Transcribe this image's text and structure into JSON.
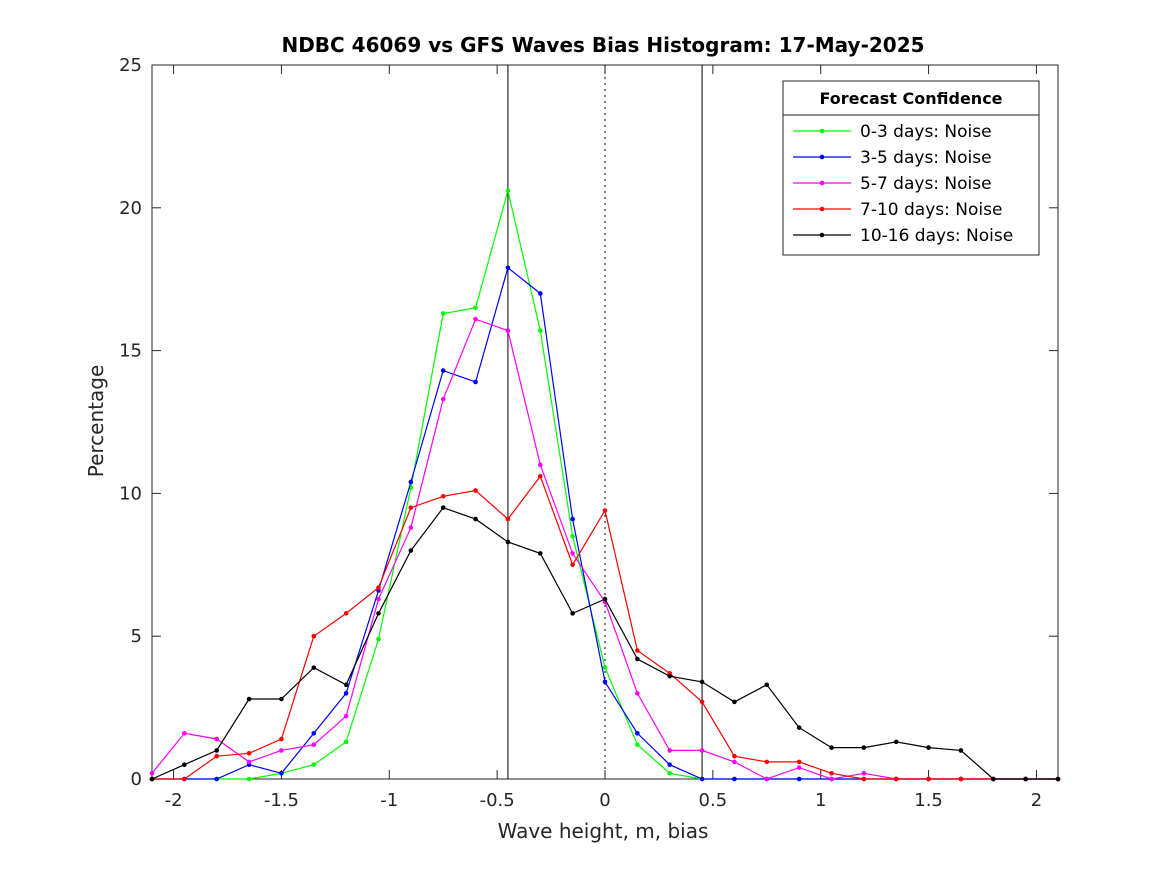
{
  "chart_data": {
    "type": "line",
    "title": "NDBC 46069 vs GFS Waves Bias Histogram: 17-May-2025",
    "xlabel": "Wave height, m, bias",
    "ylabel": "Percentage",
    "xlim": [
      -2.1,
      2.1
    ],
    "ylim": [
      0,
      25
    ],
    "xticks": [
      -2,
      -1.5,
      -1,
      -0.5,
      0,
      0.5,
      1,
      1.5,
      2
    ],
    "xtick_labels": [
      "-2",
      "-1.5",
      "-1",
      "-0.5",
      "0",
      "0.5",
      "1",
      "1.5",
      "2"
    ],
    "yticks": [
      0,
      5,
      10,
      15,
      20,
      25
    ],
    "ytick_labels": [
      "0",
      "5",
      "10",
      "15",
      "20",
      "25"
    ],
    "grid": false,
    "legend_title": "Forecast Confidence",
    "legend_position": "top-right",
    "reference_lines": [
      {
        "x": -0.45,
        "style": "solid"
      },
      {
        "x": 0,
        "style": "dotted"
      },
      {
        "x": 0.45,
        "style": "solid"
      }
    ],
    "x": [
      -2.1,
      -1.95,
      -1.8,
      -1.65,
      -1.5,
      -1.35,
      -1.2,
      -1.05,
      -0.9,
      -0.75,
      -0.6,
      -0.45,
      -0.3,
      -0.15,
      0,
      0.15,
      0.3,
      0.45,
      0.6,
      0.75,
      0.9,
      1.05,
      1.2,
      1.35,
      1.5,
      1.65,
      1.8,
      1.95,
      2.1
    ],
    "series": [
      {
        "name": "0-3 days: Noise",
        "color": "#00ff00",
        "values": [
          0,
          0,
          0,
          0,
          0.2,
          0.5,
          1.3,
          4.9,
          10.2,
          16.3,
          16.5,
          20.6,
          15.7,
          8.5,
          3.9,
          1.2,
          0.2,
          0,
          0,
          0,
          0,
          0,
          0,
          0,
          0,
          0,
          0,
          0,
          0
        ]
      },
      {
        "name": "3-5 days: Noise",
        "color": "#0000ff",
        "values": [
          0,
          0,
          0,
          0.5,
          0.2,
          1.6,
          3.0,
          6.6,
          10.4,
          14.3,
          13.9,
          17.9,
          17.0,
          9.1,
          3.4,
          1.6,
          0.5,
          0,
          0,
          0,
          0,
          0,
          0,
          0,
          0,
          0,
          0,
          0,
          0
        ]
      },
      {
        "name": "5-7 days: Noise",
        "color": "#ff00ff",
        "values": [
          0.2,
          1.6,
          1.4,
          0.6,
          1.0,
          1.2,
          2.2,
          6.3,
          8.8,
          13.3,
          16.1,
          15.7,
          11.0,
          7.9,
          6.2,
          3.0,
          1.0,
          1.0,
          0.6,
          0,
          0.4,
          0,
          0.2,
          0,
          0,
          0,
          0,
          0,
          0
        ]
      },
      {
        "name": "7-10 days: Noise",
        "color": "#ff0000",
        "values": [
          0,
          0,
          0.8,
          0.9,
          1.4,
          5.0,
          5.8,
          6.7,
          9.5,
          9.9,
          10.1,
          9.1,
          10.6,
          7.5,
          9.4,
          4.5,
          3.7,
          2.7,
          0.8,
          0.6,
          0.6,
          0.2,
          0,
          0,
          0,
          0,
          0,
          0,
          0
        ]
      },
      {
        "name": "10-16 days: Noise",
        "color": "#000000",
        "values": [
          0,
          0.5,
          1.0,
          2.8,
          2.8,
          3.9,
          3.3,
          5.8,
          8.0,
          9.5,
          9.1,
          8.3,
          7.9,
          5.8,
          6.3,
          4.2,
          3.6,
          3.4,
          2.7,
          3.3,
          1.8,
          1.1,
          1.1,
          1.3,
          1.1,
          1.0,
          0,
          0,
          0
        ]
      }
    ]
  }
}
